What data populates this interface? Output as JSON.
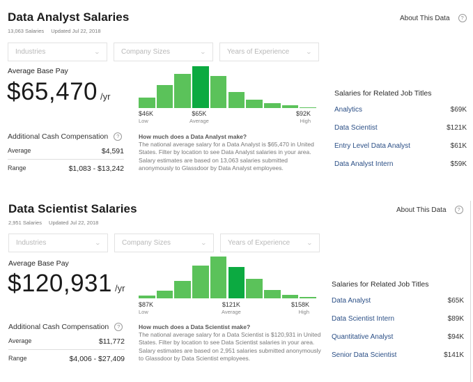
{
  "panels": [
    {
      "title": "Data Analyst Salaries",
      "salary_count": "13,063 Salaries",
      "updated": "Updated Jul 22, 2018",
      "about_label": "About This Data",
      "help_glyph": "?",
      "filters": [
        {
          "placeholder": "Industries",
          "icon": "chevron-down-icon"
        },
        {
          "placeholder": "Company Sizes",
          "icon": "chevron-down-icon"
        },
        {
          "placeholder": "Years of Experience",
          "icon": "chevron-down-icon"
        }
      ],
      "avg_base_pay_label": "Average Base Pay",
      "avg_base_pay": "$65,470",
      "per_year": "/yr",
      "additional_comp": {
        "title": "Additional Cash Compensation",
        "average_label": "Average",
        "average_value": "$4,591",
        "range_label": "Range",
        "range_value": "$1,083 - $13,242"
      },
      "histogram": {
        "relative_heights": [
          0.25,
          0.55,
          0.82,
          1.0,
          0.76,
          0.38,
          0.2,
          0.11,
          0.06,
          0.02
        ],
        "highlight_index": 3,
        "low_value": "$46K",
        "low_label": "Low",
        "avg_value": "$65K",
        "avg_label": "Average",
        "high_value": "$92K",
        "high_label": "High"
      },
      "description": {
        "question": "How much does a Data Analyst make?",
        "body": "The national average salary for a Data Analyst is $65,470 in United States. Filter by location to see Data Analyst salaries in your area. Salary estimates are based on 13,063 salaries submitted anonymously to Glassdoor by Data Analyst employees."
      },
      "related": {
        "title": "Salaries for Related Job Titles",
        "items": [
          {
            "title": "Analytics",
            "salary": "$69K"
          },
          {
            "title": "Data Scientist",
            "salary": "$121K"
          },
          {
            "title": "Entry Level Data Analyst",
            "salary": "$61K"
          },
          {
            "title": "Data Analyst Intern",
            "salary": "$59K"
          }
        ]
      }
    },
    {
      "title": "Data Scientist Salaries",
      "salary_count": "2,951 Salaries",
      "updated": "Updated Jul 22, 2018",
      "about_label": "About This Data",
      "help_glyph": "?",
      "filters": [
        {
          "placeholder": "Industries",
          "icon": "chevron-down-icon"
        },
        {
          "placeholder": "Company Sizes",
          "icon": "chevron-down-icon"
        },
        {
          "placeholder": "Years of Experience",
          "icon": "chevron-down-icon"
        }
      ],
      "avg_base_pay_label": "Average Base Pay",
      "avg_base_pay": "$120,931",
      "per_year": "/yr",
      "additional_comp": {
        "title": "Additional Cash Compensation",
        "average_label": "Average",
        "average_value": "$11,772",
        "range_label": "Range",
        "range_value": "$4,006 - $27,409"
      },
      "histogram": {
        "relative_heights": [
          0.07,
          0.18,
          0.42,
          0.78,
          1.0,
          0.75,
          0.47,
          0.2,
          0.09,
          0.03
        ],
        "highlight_index": 5,
        "low_value": "$87K",
        "low_label": "Low",
        "avg_value": "$121K",
        "avg_label": "Average",
        "high_value": "$158K",
        "high_label": "High"
      },
      "description": {
        "question": "How much does a Data Scientist make?",
        "body": "The national average salary for a Data Scientist is $120,931 in United States. Filter by location to see Data Scientist salaries in your area. Salary estimates are based on 2,951 salaries submitted anonymously to Glassdoor by Data Scientist employees."
      },
      "related": {
        "title": "Salaries for Related Job Titles",
        "items": [
          {
            "title": "Data Analyst",
            "salary": "$65K"
          },
          {
            "title": "Data Scientist Intern",
            "salary": "$89K"
          },
          {
            "title": "Quantitative Analyst",
            "salary": "$94K"
          },
          {
            "title": "Senior Data Scientist",
            "salary": "$141K"
          }
        ]
      }
    }
  ],
  "colors": {
    "bar": "#5bc25a",
    "bar_highlight": "#0caa41",
    "link": "#2b4f86"
  }
}
